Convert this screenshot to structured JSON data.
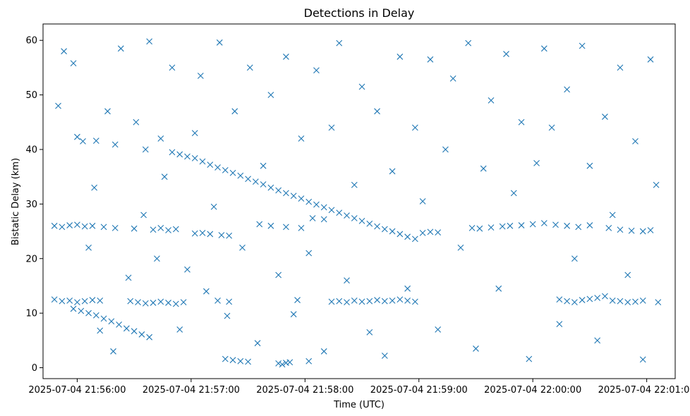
{
  "chart_data": {
    "type": "scatter",
    "title": "Detections in Delay",
    "xlabel": "Time (UTC)",
    "ylabel": "Bistatic Delay (km)",
    "marker": "x",
    "color": "#1f77b4",
    "grid": false,
    "xlim": [
      "2025-07-04 21:55:42",
      "2025-07-04 22:01:15"
    ],
    "ylim": [
      -2,
      63
    ],
    "xticks": [
      {
        "value": "2025-07-04 21:56:00",
        "label": "2025-07-04 21:56:00"
      },
      {
        "value": "2025-07-04 21:57:00",
        "label": "2025-07-04 21:57:00"
      },
      {
        "value": "2025-07-04 21:58:00",
        "label": "2025-07-04 21:58:00"
      },
      {
        "value": "2025-07-04 21:59:00",
        "label": "2025-07-04 21:59:00"
      },
      {
        "value": "2025-07-04 22:00:00",
        "label": "2025-07-04 22:00:00"
      },
      {
        "value": "2025-07-04 22:01:00",
        "label": "2025-07-04 22:01:00"
      }
    ],
    "yticks": [
      {
        "value": 0,
        "label": "0"
      },
      {
        "value": 10,
        "label": "10"
      },
      {
        "value": 20,
        "label": "20"
      },
      {
        "value": 30,
        "label": "30"
      },
      {
        "value": 40,
        "label": "40"
      },
      {
        "value": 50,
        "label": "50"
      },
      {
        "value": 60,
        "label": "60"
      }
    ],
    "series": [
      {
        "points": [
          [
            "2025-07-04 21:55:48",
            26.0
          ],
          [
            "2025-07-04 21:55:52",
            25.8
          ],
          [
            "2025-07-04 21:55:56",
            26.1
          ],
          [
            "2025-07-04 21:56:00",
            26.2
          ],
          [
            "2025-07-04 21:56:04",
            25.9
          ],
          [
            "2025-07-04 21:56:08",
            26.0
          ],
          [
            "2025-07-04 21:56:14",
            25.8
          ],
          [
            "2025-07-04 21:56:20",
            25.6
          ],
          [
            "2025-07-04 21:56:30",
            25.5
          ],
          [
            "2025-07-04 21:56:40",
            25.3
          ],
          [
            "2025-07-04 21:56:44",
            25.6
          ],
          [
            "2025-07-04 21:56:48",
            25.2
          ],
          [
            "2025-07-04 21:56:52",
            25.4
          ],
          [
            "2025-07-04 21:57:02",
            24.6
          ],
          [
            "2025-07-04 21:57:06",
            24.7
          ],
          [
            "2025-07-04 21:57:10",
            24.5
          ],
          [
            "2025-07-04 21:57:16",
            24.3
          ],
          [
            "2025-07-04 21:57:20",
            24.2
          ],
          [
            "2025-07-04 21:57:36",
            26.3
          ],
          [
            "2025-07-04 21:57:42",
            26.0
          ],
          [
            "2025-07-04 21:57:50",
            25.8
          ],
          [
            "2025-07-04 21:57:58",
            25.6
          ],
          [
            "2025-07-04 21:58:04",
            27.4
          ],
          [
            "2025-07-04 21:58:10",
            27.2
          ],
          [
            "2025-07-04 21:59:02",
            24.7
          ],
          [
            "2025-07-04 21:59:06",
            24.9
          ],
          [
            "2025-07-04 21:59:10",
            24.8
          ],
          [
            "2025-07-04 21:59:28",
            25.6
          ],
          [
            "2025-07-04 21:59:32",
            25.5
          ],
          [
            "2025-07-04 21:59:38",
            25.7
          ],
          [
            "2025-07-04 21:59:44",
            25.9
          ],
          [
            "2025-07-04 21:59:48",
            26.0
          ],
          [
            "2025-07-04 21:59:54",
            26.1
          ],
          [
            "2025-07-04 22:00:00",
            26.3
          ],
          [
            "2025-07-04 22:00:06",
            26.5
          ],
          [
            "2025-07-04 22:00:12",
            26.2
          ],
          [
            "2025-07-04 22:00:18",
            26.0
          ],
          [
            "2025-07-04 22:00:24",
            25.8
          ],
          [
            "2025-07-04 22:00:30",
            26.1
          ],
          [
            "2025-07-04 22:00:40",
            25.6
          ],
          [
            "2025-07-04 22:00:46",
            25.3
          ],
          [
            "2025-07-04 22:00:52",
            25.1
          ],
          [
            "2025-07-04 22:00:58",
            25.0
          ],
          [
            "2025-07-04 22:01:02",
            25.2
          ],
          [
            "2025-07-04 21:55:48",
            12.5
          ],
          [
            "2025-07-04 21:55:52",
            12.2
          ],
          [
            "2025-07-04 21:55:56",
            12.3
          ],
          [
            "2025-07-04 21:56:00",
            12.0
          ],
          [
            "2025-07-04 21:56:04",
            12.2
          ],
          [
            "2025-07-04 21:56:08",
            12.4
          ],
          [
            "2025-07-04 21:56:12",
            12.3
          ],
          [
            "2025-07-04 21:56:28",
            12.2
          ],
          [
            "2025-07-04 21:56:32",
            12.0
          ],
          [
            "2025-07-04 21:56:36",
            11.8
          ],
          [
            "2025-07-04 21:56:40",
            11.9
          ],
          [
            "2025-07-04 21:56:44",
            12.1
          ],
          [
            "2025-07-04 21:56:48",
            11.9
          ],
          [
            "2025-07-04 21:56:52",
            11.7
          ],
          [
            "2025-07-04 21:56:56",
            12.0
          ],
          [
            "2025-07-04 21:57:14",
            12.3
          ],
          [
            "2025-07-04 21:57:20",
            12.1
          ],
          [
            "2025-07-04 21:57:56",
            12.4
          ],
          [
            "2025-07-04 21:58:14",
            12.1
          ],
          [
            "2025-07-04 21:58:18",
            12.2
          ],
          [
            "2025-07-04 21:58:22",
            12.0
          ],
          [
            "2025-07-04 21:58:26",
            12.3
          ],
          [
            "2025-07-04 21:58:30",
            12.1
          ],
          [
            "2025-07-04 21:58:34",
            12.2
          ],
          [
            "2025-07-04 21:58:38",
            12.4
          ],
          [
            "2025-07-04 21:58:42",
            12.2
          ],
          [
            "2025-07-04 21:58:46",
            12.3
          ],
          [
            "2025-07-04 21:58:50",
            12.5
          ],
          [
            "2025-07-04 21:58:54",
            12.3
          ],
          [
            "2025-07-04 21:58:58",
            12.1
          ],
          [
            "2025-07-04 22:00:14",
            12.5
          ],
          [
            "2025-07-04 22:00:18",
            12.2
          ],
          [
            "2025-07-04 22:00:22",
            12.0
          ],
          [
            "2025-07-04 22:00:26",
            12.4
          ],
          [
            "2025-07-04 22:00:30",
            12.6
          ],
          [
            "2025-07-04 22:00:34",
            12.8
          ],
          [
            "2025-07-04 22:00:38",
            13.1
          ],
          [
            "2025-07-04 22:00:42",
            12.3
          ],
          [
            "2025-07-04 22:00:46",
            12.2
          ],
          [
            "2025-07-04 22:00:50",
            12.0
          ],
          [
            "2025-07-04 22:00:54",
            12.1
          ],
          [
            "2025-07-04 22:00:58",
            12.3
          ],
          [
            "2025-07-04 21:55:58",
            10.8
          ],
          [
            "2025-07-04 21:56:02",
            10.4
          ],
          [
            "2025-07-04 21:56:06",
            10.0
          ],
          [
            "2025-07-04 21:56:10",
            9.6
          ],
          [
            "2025-07-04 21:56:14",
            9.0
          ],
          [
            "2025-07-04 21:56:18",
            8.5
          ],
          [
            "2025-07-04 21:56:22",
            7.9
          ],
          [
            "2025-07-04 21:56:26",
            7.2
          ],
          [
            "2025-07-04 21:56:30",
            6.7
          ],
          [
            "2025-07-04 21:56:34",
            6.1
          ],
          [
            "2025-07-04 21:56:38",
            5.6
          ],
          [
            "2025-07-04 21:57:18",
            1.6
          ],
          [
            "2025-07-04 21:57:22",
            1.4
          ],
          [
            "2025-07-04 21:57:26",
            1.2
          ],
          [
            "2025-07-04 21:57:30",
            1.1
          ],
          [
            "2025-07-04 21:57:46",
            0.8
          ],
          [
            "2025-07-04 21:57:48",
            0.6
          ],
          [
            "2025-07-04 21:57:50",
            0.9
          ],
          [
            "2025-07-04 21:57:52",
            1.0
          ],
          [
            "2025-07-04 21:58:02",
            1.2
          ],
          [
            "2025-07-04 21:56:50",
            39.5
          ],
          [
            "2025-07-04 21:56:54",
            39.1
          ],
          [
            "2025-07-04 21:56:58",
            38.7
          ],
          [
            "2025-07-04 21:57:02",
            38.4
          ],
          [
            "2025-07-04 21:57:06",
            37.8
          ],
          [
            "2025-07-04 21:57:10",
            37.2
          ],
          [
            "2025-07-04 21:57:14",
            36.7
          ],
          [
            "2025-07-04 21:57:18",
            36.2
          ],
          [
            "2025-07-04 21:57:22",
            35.7
          ],
          [
            "2025-07-04 21:57:26",
            35.2
          ],
          [
            "2025-07-04 21:57:30",
            34.6
          ],
          [
            "2025-07-04 21:57:34",
            34.1
          ],
          [
            "2025-07-04 21:57:38",
            33.6
          ],
          [
            "2025-07-04 21:57:42",
            33.0
          ],
          [
            "2025-07-04 21:57:46",
            32.5
          ],
          [
            "2025-07-04 21:57:50",
            32.0
          ],
          [
            "2025-07-04 21:57:54",
            31.5
          ],
          [
            "2025-07-04 21:57:58",
            31.0
          ],
          [
            "2025-07-04 21:58:02",
            30.4
          ],
          [
            "2025-07-04 21:58:06",
            29.9
          ],
          [
            "2025-07-04 21:58:10",
            29.4
          ],
          [
            "2025-07-04 21:58:14",
            28.9
          ],
          [
            "2025-07-04 21:58:18",
            28.4
          ],
          [
            "2025-07-04 21:58:22",
            27.9
          ],
          [
            "2025-07-04 21:58:26",
            27.4
          ],
          [
            "2025-07-04 21:58:30",
            26.9
          ],
          [
            "2025-07-04 21:58:34",
            26.4
          ],
          [
            "2025-07-04 21:58:38",
            25.9
          ],
          [
            "2025-07-04 21:58:42",
            25.4
          ],
          [
            "2025-07-04 21:58:46",
            25.0
          ],
          [
            "2025-07-04 21:58:50",
            24.5
          ],
          [
            "2025-07-04 21:58:54",
            24.0
          ],
          [
            "2025-07-04 21:58:58",
            23.6
          ],
          [
            "2025-07-04 21:56:00",
            42.3
          ],
          [
            "2025-07-04 21:56:10",
            41.6
          ],
          [
            "2025-07-04 21:56:20",
            40.9
          ],
          [
            "2025-07-04 21:56:36",
            40.0
          ],
          [
            "2025-07-04 21:56:44",
            42.0
          ],
          [
            "2025-07-04 21:55:50",
            48.0
          ],
          [
            "2025-07-04 21:55:53",
            58.0
          ],
          [
            "2025-07-04 21:55:58",
            55.8
          ],
          [
            "2025-07-04 21:56:03",
            41.5
          ],
          [
            "2025-07-04 21:56:06",
            22.0
          ],
          [
            "2025-07-04 21:56:09",
            33.0
          ],
          [
            "2025-07-04 21:56:12",
            6.8
          ],
          [
            "2025-07-04 21:56:16",
            47.0
          ],
          [
            "2025-07-04 21:56:19",
            3.0
          ],
          [
            "2025-07-04 21:56:23",
            58.5
          ],
          [
            "2025-07-04 21:56:27",
            16.5
          ],
          [
            "2025-07-04 21:56:31",
            45.0
          ],
          [
            "2025-07-04 21:56:35",
            28.0
          ],
          [
            "2025-07-04 21:56:38",
            59.8
          ],
          [
            "2025-07-04 21:56:42",
            20.0
          ],
          [
            "2025-07-04 21:56:46",
            35.0
          ],
          [
            "2025-07-04 21:56:50",
            55.0
          ],
          [
            "2025-07-04 21:56:54",
            7.0
          ],
          [
            "2025-07-04 21:56:58",
            18.0
          ],
          [
            "2025-07-04 21:57:02",
            43.0
          ],
          [
            "2025-07-04 21:57:05",
            53.5
          ],
          [
            "2025-07-04 21:57:08",
            14.0
          ],
          [
            "2025-07-04 21:57:12",
            29.5
          ],
          [
            "2025-07-04 21:57:15",
            59.6
          ],
          [
            "2025-07-04 21:57:19",
            9.5
          ],
          [
            "2025-07-04 21:57:23",
            47.0
          ],
          [
            "2025-07-04 21:57:27",
            22.0
          ],
          [
            "2025-07-04 21:57:31",
            55.0
          ],
          [
            "2025-07-04 21:57:35",
            4.5
          ],
          [
            "2025-07-04 21:57:38",
            37.0
          ],
          [
            "2025-07-04 21:57:42",
            50.0
          ],
          [
            "2025-07-04 21:57:46",
            17.0
          ],
          [
            "2025-07-04 21:57:50",
            57.0
          ],
          [
            "2025-07-04 21:57:54",
            9.8
          ],
          [
            "2025-07-04 21:57:58",
            42.0
          ],
          [
            "2025-07-04 21:58:02",
            21.0
          ],
          [
            "2025-07-04 21:58:06",
            54.5
          ],
          [
            "2025-07-04 21:58:10",
            3.0
          ],
          [
            "2025-07-04 21:58:14",
            44.0
          ],
          [
            "2025-07-04 21:58:18",
            59.5
          ],
          [
            "2025-07-04 21:58:22",
            16.0
          ],
          [
            "2025-07-04 21:58:26",
            33.5
          ],
          [
            "2025-07-04 21:58:30",
            51.5
          ],
          [
            "2025-07-04 21:58:34",
            6.5
          ],
          [
            "2025-07-04 21:58:38",
            47.0
          ],
          [
            "2025-07-04 21:58:42",
            2.2
          ],
          [
            "2025-07-04 21:58:46",
            36.0
          ],
          [
            "2025-07-04 21:58:50",
            57.0
          ],
          [
            "2025-07-04 21:58:54",
            14.5
          ],
          [
            "2025-07-04 21:58:58",
            44.0
          ],
          [
            "2025-07-04 21:59:02",
            30.5
          ],
          [
            "2025-07-04 21:59:06",
            56.5
          ],
          [
            "2025-07-04 21:59:10",
            7.0
          ],
          [
            "2025-07-04 21:59:14",
            40.0
          ],
          [
            "2025-07-04 21:59:18",
            53.0
          ],
          [
            "2025-07-04 21:59:22",
            22.0
          ],
          [
            "2025-07-04 21:59:26",
            59.5
          ],
          [
            "2025-07-04 21:59:30",
            3.5
          ],
          [
            "2025-07-04 21:59:34",
            36.5
          ],
          [
            "2025-07-04 21:59:38",
            49.0
          ],
          [
            "2025-07-04 21:59:42",
            14.5
          ],
          [
            "2025-07-04 21:59:46",
            57.5
          ],
          [
            "2025-07-04 21:59:50",
            32.0
          ],
          [
            "2025-07-04 21:59:54",
            45.0
          ],
          [
            "2025-07-04 21:59:58",
            1.6
          ],
          [
            "2025-07-04 22:00:02",
            37.5
          ],
          [
            "2025-07-04 22:00:06",
            58.5
          ],
          [
            "2025-07-04 22:00:10",
            44.0
          ],
          [
            "2025-07-04 22:00:14",
            8.0
          ],
          [
            "2025-07-04 22:00:18",
            51.0
          ],
          [
            "2025-07-04 22:00:22",
            20.0
          ],
          [
            "2025-07-04 22:00:26",
            59.0
          ],
          [
            "2025-07-04 22:00:30",
            37.0
          ],
          [
            "2025-07-04 22:00:34",
            5.0
          ],
          [
            "2025-07-04 22:00:38",
            46.0
          ],
          [
            "2025-07-04 22:00:42",
            28.0
          ],
          [
            "2025-07-04 22:00:46",
            55.0
          ],
          [
            "2025-07-04 22:00:50",
            17.0
          ],
          [
            "2025-07-04 22:00:54",
            41.5
          ],
          [
            "2025-07-04 22:00:58",
            1.5
          ],
          [
            "2025-07-04 22:01:02",
            56.5
          ],
          [
            "2025-07-04 22:01:05",
            33.5
          ],
          [
            "2025-07-04 22:01:06",
            12.0
          ]
        ]
      }
    ]
  }
}
